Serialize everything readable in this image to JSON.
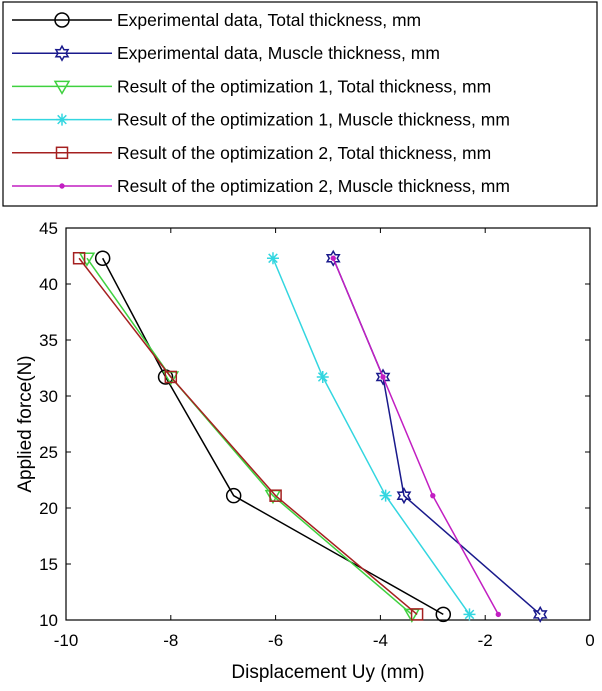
{
  "chart_data": {
    "type": "line",
    "xlabel": "Displacement Uy (mm)",
    "ylabel": "Applied force(N)",
    "xlim": [
      -10,
      0
    ],
    "ylim": [
      10,
      45
    ],
    "xticks": [
      -10,
      -8,
      -6,
      -4,
      -2,
      0
    ],
    "yticks": [
      10,
      15,
      20,
      25,
      30,
      35,
      40,
      45
    ],
    "grid": false,
    "legend_position": "top",
    "series": [
      {
        "name": "Experimental data, Total thickness, mm",
        "color": "#000000",
        "marker": "circle",
        "x": [
          -2.8,
          -6.8,
          -8.1,
          -9.3
        ],
        "y": [
          10.5,
          21.1,
          31.7,
          42.3
        ]
      },
      {
        "name": "Experimental data, Muscle thickness, mm",
        "color": "#1a1a8c",
        "marker": "hexagram",
        "x": [
          -0.95,
          -3.55,
          -3.95,
          -4.9
        ],
        "y": [
          10.5,
          21.1,
          31.7,
          42.3
        ]
      },
      {
        "name": "Result of the optimization 1, Total thickness, mm",
        "color": "#3fd13f",
        "marker": "triangle-down",
        "x": [
          -3.4,
          -6.05,
          -8.0,
          -9.6
        ],
        "y": [
          10.5,
          21.1,
          31.7,
          42.3
        ]
      },
      {
        "name": "Result of the optimization 1, Muscle thickness, mm",
        "color": "#33d6e0",
        "marker": "asterisk",
        "x": [
          -2.3,
          -3.9,
          -5.1,
          -6.05
        ],
        "y": [
          10.5,
          21.1,
          31.7,
          42.3
        ]
      },
      {
        "name": "Result of the optimization 2, Total thickness, mm",
        "color": "#a52020",
        "marker": "square",
        "x": [
          -3.3,
          -6.0,
          -8.0,
          -9.75
        ],
        "y": [
          10.5,
          21.1,
          31.7,
          42.3
        ]
      },
      {
        "name": "Result of the optimization 2, Muscle thickness, mm",
        "color": "#c21fc2",
        "marker": "point",
        "x": [
          -1.75,
          -3.0,
          -3.95,
          -4.9
        ],
        "y": [
          10.5,
          21.1,
          31.7,
          42.3
        ]
      }
    ]
  }
}
